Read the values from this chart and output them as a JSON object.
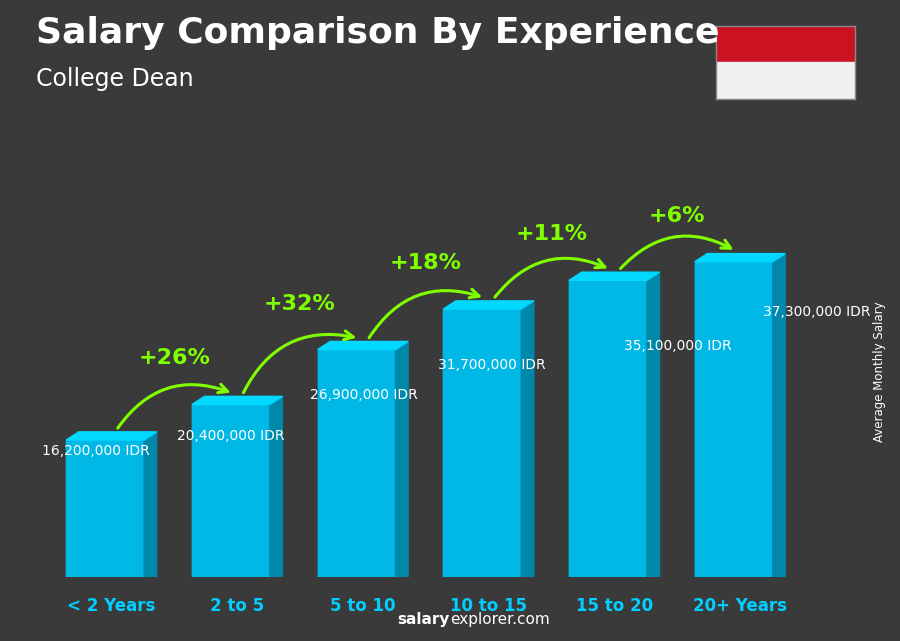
{
  "title": "Salary Comparison By Experience",
  "subtitle": "College Dean",
  "categories": [
    "< 2 Years",
    "2 to 5",
    "5 to 10",
    "10 to 15",
    "15 to 20",
    "20+ Years"
  ],
  "values": [
    16200000,
    20400000,
    26900000,
    31700000,
    35100000,
    37300000
  ],
  "labels": [
    "16,200,000 IDR",
    "20,400,000 IDR",
    "26,900,000 IDR",
    "31,700,000 IDR",
    "35,100,000 IDR",
    "37,300,000 IDR"
  ],
  "pct_changes": [
    "+26%",
    "+32%",
    "+18%",
    "+11%",
    "+6%"
  ],
  "bar_color_front": "#00b8e6",
  "bar_color_top": "#00d8ff",
  "bar_color_side": "#0088aa",
  "bg_color": "#3a3a3a",
  "title_color": "#ffffff",
  "subtitle_color": "#ffffff",
  "label_color": "#ffffff",
  "pct_color": "#7fff00",
  "xlabel_color": "#00cfff",
  "ylabel_text": "Average Monthly Salary",
  "footer_bold": "salary",
  "footer_rest": "explorer.com",
  "title_fontsize": 26,
  "subtitle_fontsize": 17,
  "label_fontsize": 10,
  "pct_fontsize": 16,
  "cat_fontsize": 12,
  "ylim_max": 44000000,
  "flag_red": "#cc1122",
  "flag_white": "#f0f0f0",
  "arrow_color": "#7fff00"
}
